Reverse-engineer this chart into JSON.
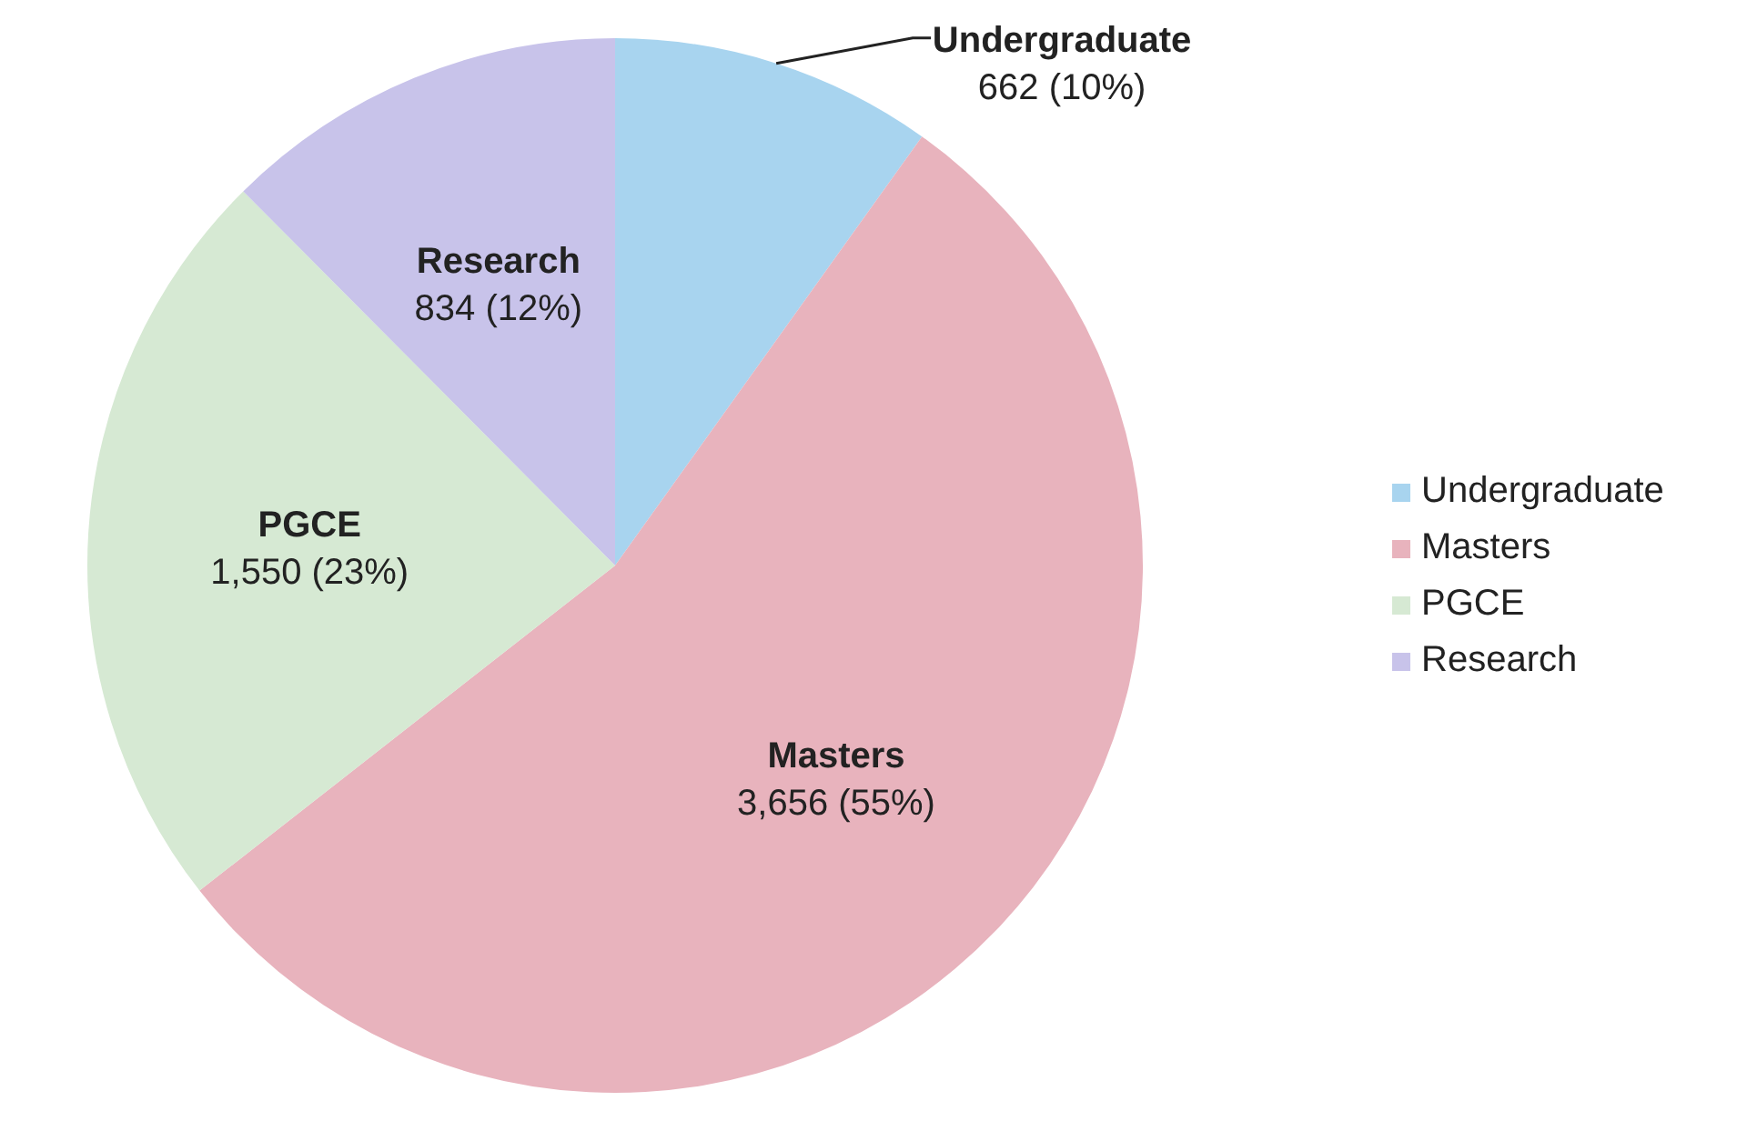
{
  "chart_data": {
    "type": "pie",
    "categories": [
      "Undergraduate",
      "Masters",
      "PGCE",
      "Research"
    ],
    "values": [
      662,
      3656,
      1550,
      834
    ],
    "colors": [
      "#a8d4ef",
      "#e8b3bd",
      "#d6e9d3",
      "#c8c3ea"
    ],
    "value_labels": [
      "662 (10%)",
      "3,656 (55%)",
      "1,550 (23%)",
      "834 (12%)"
    ],
    "legend": "right"
  }
}
